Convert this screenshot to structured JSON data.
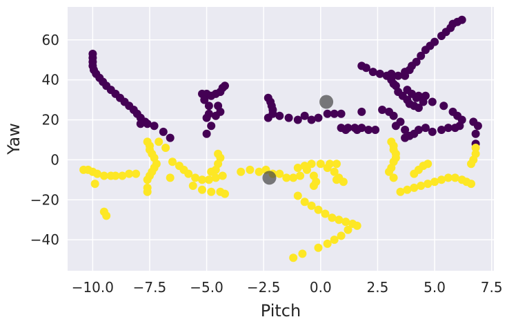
{
  "chart_data": {
    "type": "scatter",
    "title": "",
    "xlabel": "Pitch",
    "ylabel": "Yaw",
    "xlim": [
      -11.1,
      7.6
    ],
    "ylim": [
      -55.5,
      76.5
    ],
    "xticks": [
      -10.0,
      -7.5,
      -5.0,
      -2.5,
      0.0,
      2.5,
      5.0,
      7.5
    ],
    "xtick_labels": [
      "−10.0",
      "−7.5",
      "−5.0",
      "−2.5",
      "0.0",
      "2.5",
      "5.0",
      "7.5"
    ],
    "yticks": [
      -40,
      -20,
      0,
      20,
      40,
      60
    ],
    "ytick_labels": [
      "−40",
      "−20",
      "0",
      "20",
      "40",
      "60"
    ],
    "grid": true,
    "background": "#eaeaf2",
    "series": [
      {
        "color": "#440154",
        "points": [
          [
            -10.0,
            53
          ],
          [
            -10.0,
            51
          ],
          [
            -10.0,
            49
          ],
          [
            -10.0,
            47
          ],
          [
            -9.95,
            45
          ],
          [
            -9.85,
            43
          ],
          [
            -9.7,
            41
          ],
          [
            -9.55,
            39
          ],
          [
            -9.4,
            37
          ],
          [
            -9.2,
            35
          ],
          [
            -9.0,
            33
          ],
          [
            -8.8,
            31
          ],
          [
            -8.6,
            29
          ],
          [
            -8.4,
            27
          ],
          [
            -8.2,
            25
          ],
          [
            -8.05,
            23
          ],
          [
            -7.9,
            21
          ],
          [
            -7.7,
            19
          ],
          [
            -7.9,
            18
          ],
          [
            -7.6,
            18
          ],
          [
            -7.3,
            17
          ],
          [
            -6.9,
            14
          ],
          [
            -6.6,
            11
          ],
          [
            -5.2,
            33
          ],
          [
            -5.0,
            33
          ],
          [
            -4.8,
            32
          ],
          [
            -4.6,
            33
          ],
          [
            -4.4,
            34
          ],
          [
            -4.3,
            36
          ],
          [
            -4.2,
            37
          ],
          [
            -5.1,
            30
          ],
          [
            -4.9,
            27
          ],
          [
            -4.9,
            23
          ],
          [
            -5.0,
            21
          ],
          [
            -4.5,
            27
          ],
          [
            -4.4,
            24
          ],
          [
            -4.6,
            22
          ],
          [
            -4.8,
            17
          ],
          [
            -5.0,
            13
          ],
          [
            -2.3,
            31
          ],
          [
            -2.2,
            29
          ],
          [
            -2.15,
            27
          ],
          [
            -2.1,
            25
          ],
          [
            -2.1,
            23
          ],
          [
            -2.3,
            21
          ],
          [
            -1.8,
            22
          ],
          [
            -1.4,
            21
          ],
          [
            -1.0,
            20
          ],
          [
            -0.7,
            22
          ],
          [
            -0.4,
            20
          ],
          [
            -0.1,
            21
          ],
          [
            0.3,
            23
          ],
          [
            0.6,
            23
          ],
          [
            0.9,
            23
          ],
          [
            0.9,
            16
          ],
          [
            1.2,
            16
          ],
          [
            1.5,
            16
          ],
          [
            1.8,
            16
          ],
          [
            2.1,
            15
          ],
          [
            2.4,
            15
          ],
          [
            1.1,
            15
          ],
          [
            1.6,
            15
          ],
          [
            1.8,
            24
          ],
          [
            2.7,
            25
          ],
          [
            3.0,
            24
          ],
          [
            3.2,
            22
          ],
          [
            3.5,
            19
          ],
          [
            3.7,
            15
          ],
          [
            1.8,
            47
          ],
          [
            2.0,
            46
          ],
          [
            2.3,
            44
          ],
          [
            2.6,
            43
          ],
          [
            2.9,
            42
          ],
          [
            3.1,
            43
          ],
          [
            3.4,
            42
          ],
          [
            3.7,
            42
          ],
          [
            3.1,
            40
          ],
          [
            3.2,
            38
          ],
          [
            3.3,
            37
          ],
          [
            3.4,
            34
          ],
          [
            3.6,
            32
          ],
          [
            3.8,
            30
          ],
          [
            3.9,
            28
          ],
          [
            4.1,
            27
          ],
          [
            4.3,
            26
          ],
          [
            3.7,
            44
          ],
          [
            3.9,
            45
          ],
          [
            4.0,
            47
          ],
          [
            4.2,
            49
          ],
          [
            4.4,
            52
          ],
          [
            4.6,
            55
          ],
          [
            4.8,
            57
          ],
          [
            5.0,
            59
          ],
          [
            5.3,
            62
          ],
          [
            5.5,
            64
          ],
          [
            5.7,
            66
          ],
          [
            5.8,
            68
          ],
          [
            6.0,
            69
          ],
          [
            6.2,
            70
          ],
          [
            3.8,
            35
          ],
          [
            4.0,
            33
          ],
          [
            4.3,
            32
          ],
          [
            4.6,
            32
          ],
          [
            4.2,
            31
          ],
          [
            4.5,
            29
          ],
          [
            4.9,
            29
          ],
          [
            5.4,
            27
          ],
          [
            5.8,
            24
          ],
          [
            6.0,
            22
          ],
          [
            6.2,
            20
          ],
          [
            6.7,
            19
          ],
          [
            6.9,
            17
          ],
          [
            6.8,
            13
          ],
          [
            6.8,
            8
          ],
          [
            6.1,
            17
          ],
          [
            5.9,
            16
          ],
          [
            5.6,
            16
          ],
          [
            5.3,
            15
          ],
          [
            4.9,
            14
          ],
          [
            4.6,
            16
          ],
          [
            4.3,
            15
          ],
          [
            4.1,
            13
          ],
          [
            3.9,
            12
          ],
          [
            3.7,
            11
          ],
          [
            3.3,
            17
          ]
        ]
      },
      {
        "color": "#fde725",
        "points": [
          [
            -10.4,
            -5
          ],
          [
            -10.2,
            -5
          ],
          [
            -10.0,
            -6
          ],
          [
            -9.8,
            -7
          ],
          [
            -9.5,
            -8
          ],
          [
            -9.2,
            -8
          ],
          [
            -9.0,
            -8
          ],
          [
            -8.7,
            -8
          ],
          [
            -8.4,
            -7
          ],
          [
            -8.1,
            -7
          ],
          [
            -9.9,
            -12
          ],
          [
            -9.5,
            -26
          ],
          [
            -9.4,
            -28
          ],
          [
            -7.6,
            9
          ],
          [
            -7.5,
            7
          ],
          [
            -7.5,
            5
          ],
          [
            -7.4,
            3
          ],
          [
            -7.3,
            1
          ],
          [
            -7.2,
            -2
          ],
          [
            -7.3,
            -4
          ],
          [
            -7.4,
            -6
          ],
          [
            -7.5,
            -8
          ],
          [
            -7.6,
            -10
          ],
          [
            -7.6,
            -14
          ],
          [
            -7.6,
            -16
          ],
          [
            -7.1,
            9
          ],
          [
            -6.8,
            6
          ],
          [
            -6.5,
            -1
          ],
          [
            -6.2,
            -3
          ],
          [
            -6.0,
            -5
          ],
          [
            -5.8,
            -7
          ],
          [
            -5.5,
            -9
          ],
          [
            -5.2,
            -10
          ],
          [
            -4.9,
            -10
          ],
          [
            -4.6,
            -9
          ],
          [
            -4.3,
            -8
          ],
          [
            -4.5,
            3
          ],
          [
            -4.4,
            1
          ],
          [
            -4.5,
            -2
          ],
          [
            -4.6,
            -5
          ],
          [
            -4.8,
            -6
          ],
          [
            -6.6,
            -9
          ],
          [
            -5.6,
            -13
          ],
          [
            -5.2,
            -15
          ],
          [
            -4.8,
            -16
          ],
          [
            -4.4,
            -16
          ],
          [
            -4.2,
            -17
          ],
          [
            -3.5,
            -6
          ],
          [
            -3.1,
            -5
          ],
          [
            -2.7,
            -6
          ],
          [
            -2.4,
            -5
          ],
          [
            -2.1,
            -7
          ],
          [
            -1.8,
            -7
          ],
          [
            -1.5,
            -9
          ],
          [
            -1.2,
            -9
          ],
          [
            -0.9,
            -8
          ],
          [
            -0.6,
            -5
          ],
          [
            -1.0,
            -4
          ],
          [
            -0.7,
            -3
          ],
          [
            -0.4,
            -2
          ],
          [
            0.0,
            -2
          ],
          [
            0.4,
            -2
          ],
          [
            0.7,
            -2
          ],
          [
            0.3,
            -4
          ],
          [
            -0.3,
            -8
          ],
          [
            -0.2,
            -11
          ],
          [
            -0.3,
            -13
          ],
          [
            0.6,
            -6
          ],
          [
            0.8,
            -9
          ],
          [
            1.0,
            -11
          ],
          [
            0.7,
            -10
          ],
          [
            -1.0,
            -18
          ],
          [
            -0.7,
            -21
          ],
          [
            -0.4,
            -23
          ],
          [
            -0.1,
            -25
          ],
          [
            0.2,
            -27
          ],
          [
            0.5,
            -29
          ],
          [
            0.8,
            -30
          ],
          [
            1.1,
            -31
          ],
          [
            1.4,
            -32
          ],
          [
            1.6,
            -33
          ],
          [
            1.2,
            -35
          ],
          [
            0.9,
            -38
          ],
          [
            0.6,
            -40
          ],
          [
            0.3,
            -42
          ],
          [
            -0.1,
            -44
          ],
          [
            -1.2,
            -49
          ],
          [
            -0.8,
            -47
          ],
          [
            3.1,
            9
          ],
          [
            3.2,
            7
          ],
          [
            3.2,
            5
          ],
          [
            3.3,
            3
          ],
          [
            3.3,
            1
          ],
          [
            3.2,
            -1
          ],
          [
            3.1,
            -4
          ],
          [
            3.0,
            -6
          ],
          [
            3.2,
            -9
          ],
          [
            3.5,
            -16
          ],
          [
            3.8,
            -15
          ],
          [
            4.1,
            -14
          ],
          [
            4.4,
            -13
          ],
          [
            4.7,
            -12
          ],
          [
            5.0,
            -11
          ],
          [
            5.3,
            -10
          ],
          [
            5.6,
            -9
          ],
          [
            5.9,
            -9
          ],
          [
            6.2,
            -10
          ],
          [
            6.4,
            -11
          ],
          [
            6.6,
            -12
          ],
          [
            4.1,
            -7
          ],
          [
            4.3,
            -5
          ],
          [
            4.5,
            -3
          ],
          [
            4.7,
            -2
          ],
          [
            6.7,
            0
          ],
          [
            6.8,
            3
          ],
          [
            6.8,
            6
          ],
          [
            6.6,
            -2
          ]
        ]
      },
      {
        "color": "#444444",
        "points": [
          [
            0.25,
            29
          ],
          [
            -2.25,
            -9
          ]
        ]
      }
    ]
  }
}
